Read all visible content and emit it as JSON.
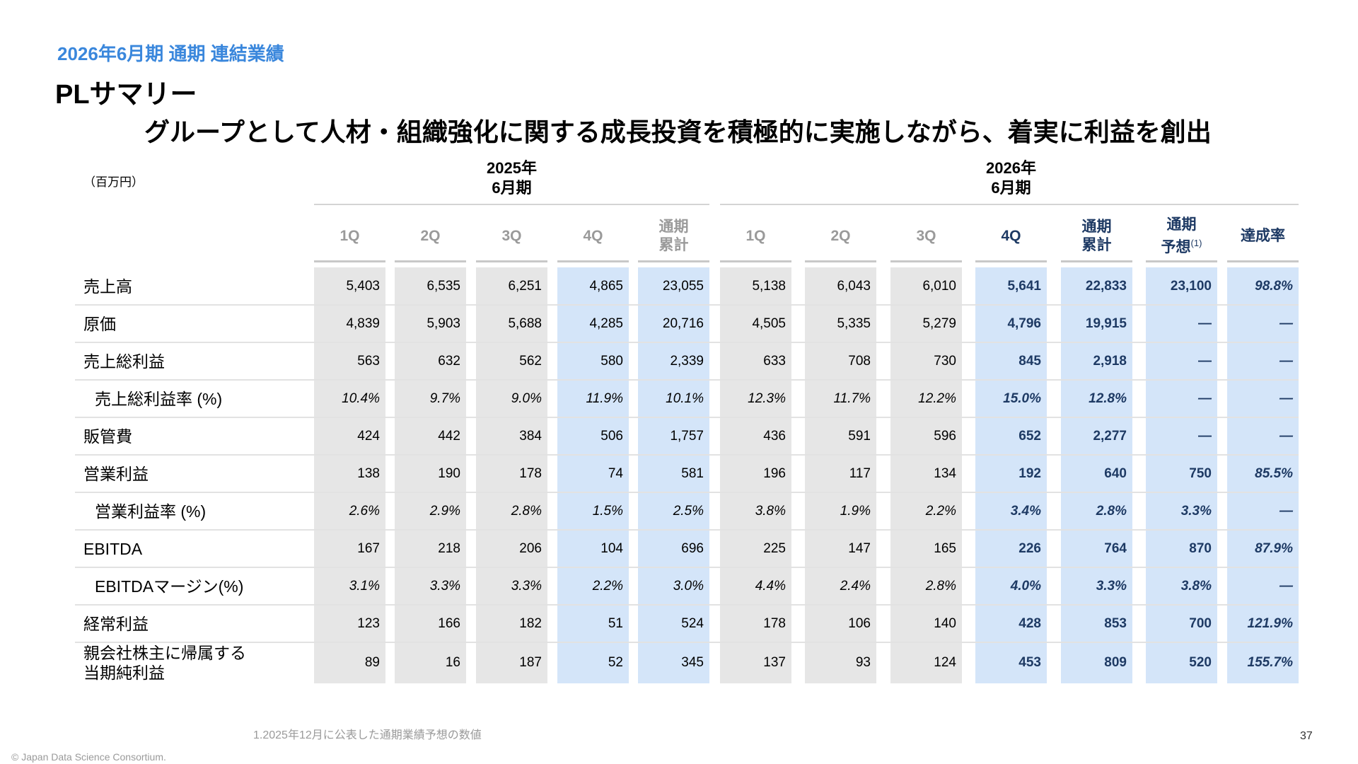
{
  "eyebrow": "2026年6月期 通期 連結業績",
  "title": "PLサマリー",
  "headline": "グループとして人材・組織強化に関する成長投資を積極的に実施しながら、着実に利益を創出",
  "unit_label": "（百万円）",
  "periods": [
    "2025年\n6月期",
    "2026年\n6月期"
  ],
  "columns": [
    {
      "label": "1Q"
    },
    {
      "label": "2Q"
    },
    {
      "label": "3Q"
    },
    {
      "label": "4Q"
    },
    {
      "label": "通期\n累計"
    },
    {
      "label": "1Q"
    },
    {
      "label": "2Q"
    },
    {
      "label": "3Q"
    },
    {
      "label": "4Q"
    },
    {
      "label": "通期\n累計"
    },
    {
      "label": "通期\n予想",
      "sup": "(1)"
    },
    {
      "label": "達成率"
    }
  ],
  "rows": [
    {
      "label": "売上高",
      "values": [
        "5,403",
        "6,535",
        "6,251",
        "4,865",
        "23,055",
        "5,138",
        "6,043",
        "6,010",
        "5,641",
        "22,833",
        "23,100",
        "98.8%"
      ]
    },
    {
      "label": "原価",
      "values": [
        "4,839",
        "5,903",
        "5,688",
        "4,285",
        "20,716",
        "4,505",
        "5,335",
        "5,279",
        "4,796",
        "19,915",
        "—",
        "—"
      ]
    },
    {
      "label": "売上総利益",
      "values": [
        "563",
        "632",
        "562",
        "580",
        "2,339",
        "633",
        "708",
        "730",
        "845",
        "2,918",
        "—",
        "—"
      ]
    },
    {
      "label": "売上総利益率 (%)",
      "values": [
        "10.4%",
        "9.7%",
        "9.0%",
        "11.9%",
        "10.1%",
        "12.3%",
        "11.7%",
        "12.2%",
        "15.0%",
        "12.8%",
        "—",
        "—"
      ]
    },
    {
      "label": "販管費",
      "values": [
        "424",
        "442",
        "384",
        "506",
        "1,757",
        "436",
        "591",
        "596",
        "652",
        "2,277",
        "—",
        "—"
      ]
    },
    {
      "label": "営業利益",
      "values": [
        "138",
        "190",
        "178",
        "74",
        "581",
        "196",
        "117",
        "134",
        "192",
        "640",
        "750",
        "85.5%"
      ]
    },
    {
      "label": "営業利益率 (%)",
      "values": [
        "2.6%",
        "2.9%",
        "2.8%",
        "1.5%",
        "2.5%",
        "3.8%",
        "1.9%",
        "2.2%",
        "3.4%",
        "2.8%",
        "3.3%",
        "—"
      ]
    },
    {
      "label": "EBITDA",
      "values": [
        "167",
        "218",
        "206",
        "104",
        "696",
        "225",
        "147",
        "165",
        "226",
        "764",
        "870",
        "87.9%"
      ]
    },
    {
      "label": "EBITDAマージン(%)",
      "values": [
        "3.1%",
        "3.3%",
        "3.3%",
        "2.2%",
        "3.0%",
        "4.4%",
        "2.4%",
        "2.8%",
        "4.0%",
        "3.3%",
        "3.8%",
        "—"
      ]
    },
    {
      "label": "経常利益",
      "values": [
        "123",
        "166",
        "182",
        "51",
        "524",
        "178",
        "106",
        "140",
        "428",
        "853",
        "700",
        "121.9%"
      ]
    },
    {
      "label": "親会社株主に帰属する\n当期純利益",
      "values": [
        "89",
        "16",
        "187",
        "52",
        "345",
        "137",
        "93",
        "124",
        "453",
        "809",
        "520",
        "155.7%"
      ]
    }
  ],
  "footnote": "1.2025年12月に公表した通期業績予想の数値",
  "copyright": "© Japan Data Science Consortium.",
  "page_number": "37"
}
